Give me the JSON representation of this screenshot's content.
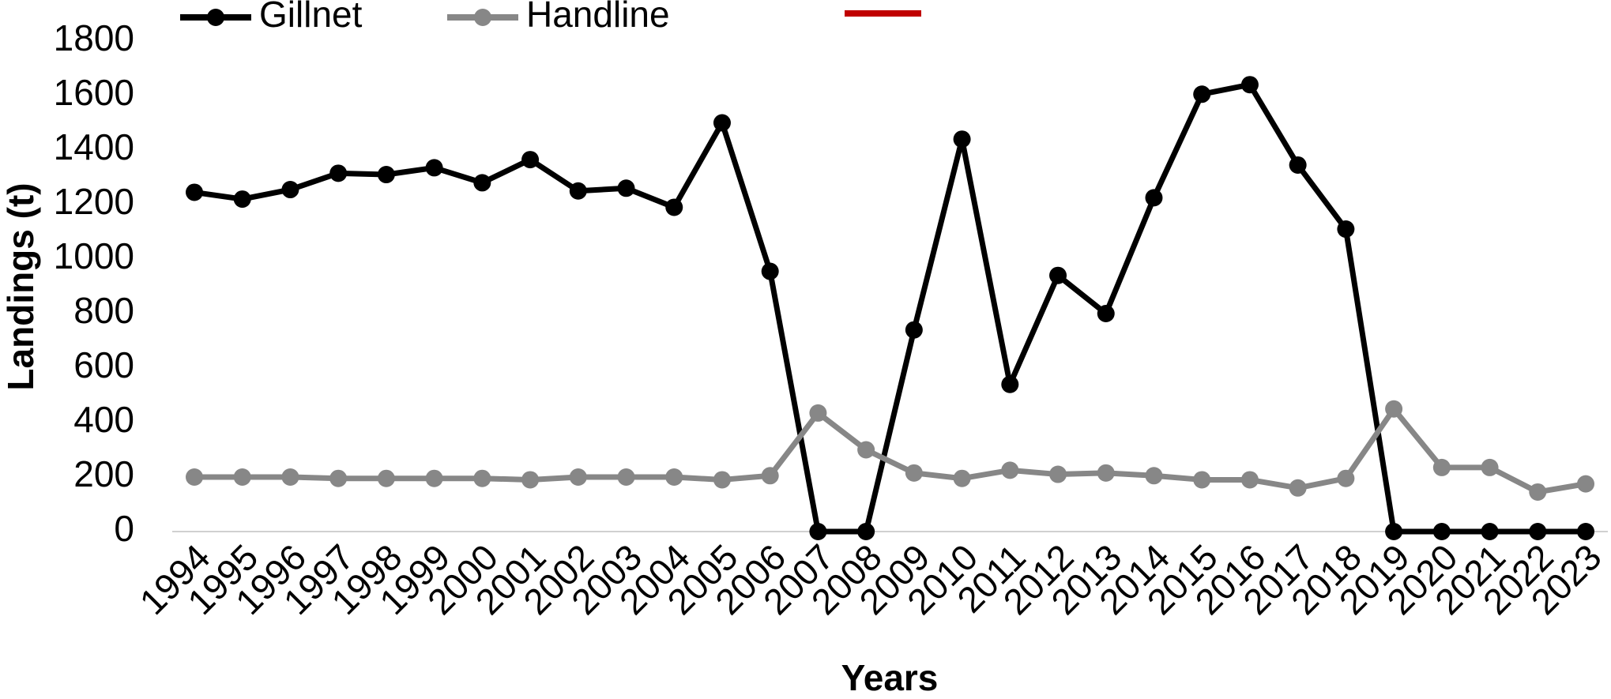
{
  "chart_data": {
    "type": "line",
    "x_label": "Years",
    "y_label": "Landings (t)",
    "categories": [
      "1994",
      "1995",
      "1996",
      "1997",
      "1998",
      "1999",
      "2000",
      "2001",
      "2002",
      "2003",
      "2004",
      "2005",
      "2006",
      "2007",
      "2008",
      "2009",
      "2010",
      "2011",
      "2012",
      "2013",
      "2014",
      "2015",
      "2016",
      "2017",
      "2018",
      "2019",
      "2020",
      "2021",
      "2022",
      "2023"
    ],
    "series": [
      {
        "name": "Gillnet",
        "color": "#000000",
        "values": [
          1245,
          1220,
          1255,
          1315,
          1310,
          1335,
          1280,
          1365,
          1250,
          1260,
          1190,
          1500,
          955,
          0,
          0,
          740,
          1440,
          540,
          940,
          800,
          1225,
          1605,
          1640,
          1345,
          1110,
          0,
          0,
          0,
          0,
          0
        ]
      },
      {
        "name": "Handline",
        "color": "#878787",
        "values": [
          200,
          200,
          200,
          195,
          195,
          195,
          195,
          190,
          200,
          200,
          200,
          190,
          205,
          435,
          300,
          215,
          195,
          225,
          210,
          215,
          205,
          190,
          190,
          160,
          195,
          450,
          235,
          235,
          145,
          175
        ]
      }
    ],
    "ylim": [
      0,
      1800
    ],
    "yticks": [
      0,
      200,
      400,
      600,
      800,
      1000,
      1200,
      1400,
      1600,
      1800
    ],
    "grid": false
  }
}
